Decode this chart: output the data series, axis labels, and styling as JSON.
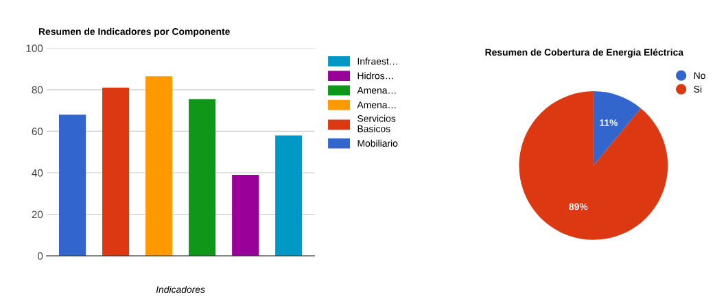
{
  "chart_data": [
    {
      "type": "bar",
      "title": "Resumen de Indicadores por Componente",
      "xlabel": "Indicadores",
      "categories": [
        null,
        null,
        null,
        null,
        null,
        null
      ],
      "series": [
        {
          "name": "Infraest…",
          "color": "#0099c6",
          "values": [
            null,
            null,
            null,
            null,
            null,
            58
          ]
        },
        {
          "name": "Hidros…",
          "color": "#990099",
          "values": [
            null,
            null,
            null,
            null,
            39,
            null
          ]
        },
        {
          "name": "Amena…",
          "color": "#109618",
          "values": [
            null,
            null,
            null,
            75.5,
            null,
            null
          ]
        },
        {
          "name": "Amena…",
          "color": "#ff9900",
          "values": [
            null,
            null,
            86.5,
            null,
            null,
            null
          ]
        },
        {
          "name": "Servicios\nBasicos",
          "color": "#dc3912",
          "values": [
            null,
            81,
            null,
            null,
            null,
            null
          ]
        },
        {
          "name": "Mobiliario",
          "color": "#3366cc",
          "values": [
            68,
            null,
            null,
            null,
            null,
            null
          ]
        }
      ],
      "ylim": [
        0,
        100
      ],
      "yticks": [
        0,
        20,
        40,
        60,
        80,
        100
      ],
      "grid": "y",
      "legend": "right"
    },
    {
      "type": "pie",
      "title": "Resumen de Cobertura de Energia Eléctrica",
      "categories": [
        "No",
        "Si"
      ],
      "values": [
        11,
        89
      ],
      "value_labels": [
        "11%",
        "89%"
      ],
      "colors": [
        "#3366cc",
        "#dc3912"
      ],
      "legend": "top right"
    }
  ]
}
